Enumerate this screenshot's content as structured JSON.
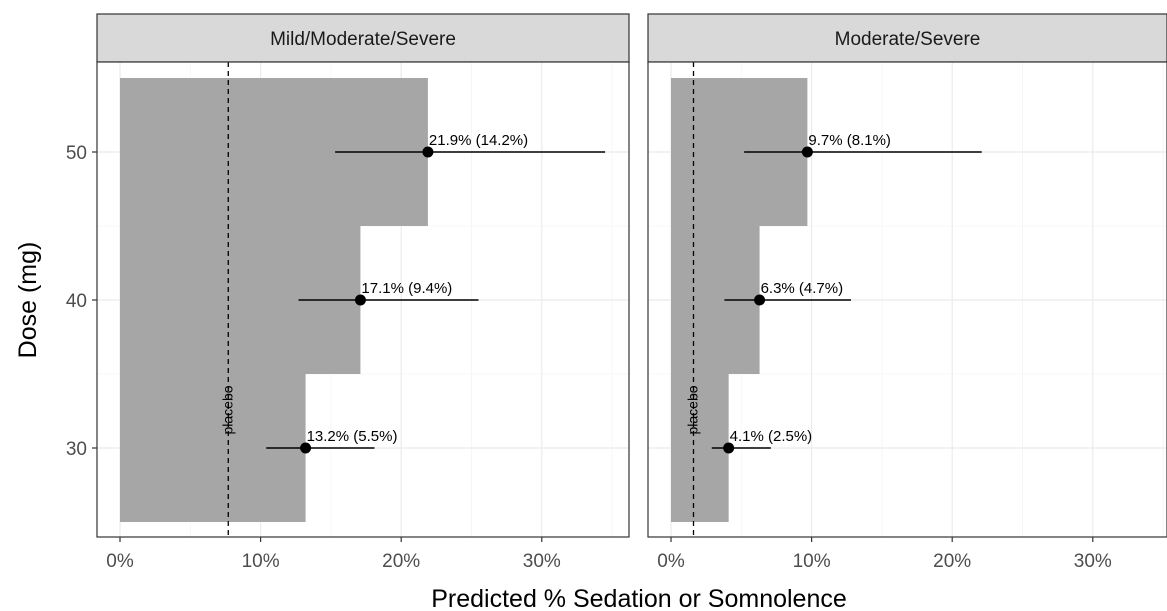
{
  "chart_data": {
    "type": "bar",
    "orientation": "horizontal",
    "xlabel": "Predicted % Sedation or Somnolence",
    "ylabel": "Dose (mg)",
    "xlim": [
      0,
      35
    ],
    "xticks": [
      0,
      10,
      20,
      30
    ],
    "xtick_labels": [
      "0%",
      "10%",
      "20%",
      "30%"
    ],
    "yticks": [
      30,
      40,
      50
    ],
    "ytick_labels": [
      "30",
      "40",
      "50"
    ],
    "grid": true,
    "panels": [
      {
        "title": "Mild/Moderate/Severe",
        "placebo": 7.7,
        "placebo_label": "placebo",
        "bars": [
          {
            "dose": 50,
            "value": 21.9,
            "lower": 15.3,
            "upper": 34.5,
            "label": "21.9% (14.2%)"
          },
          {
            "dose": 40,
            "value": 17.1,
            "lower": 12.7,
            "upper": 25.5,
            "label": "17.1% (9.4%)"
          },
          {
            "dose": 30,
            "value": 13.2,
            "lower": 10.4,
            "upper": 18.1,
            "label": "13.2% (5.5%)"
          }
        ]
      },
      {
        "title": "Moderate/Severe",
        "placebo": 1.6,
        "placebo_label": "placebo",
        "bars": [
          {
            "dose": 50,
            "value": 9.7,
            "lower": 5.2,
            "upper": 22.1,
            "label": "9.7% (8.1%)"
          },
          {
            "dose": 40,
            "value": 6.3,
            "lower": 3.8,
            "upper": 12.8,
            "label": "6.3% (4.7%)"
          },
          {
            "dose": 30,
            "value": 4.1,
            "lower": 2.9,
            "upper": 7.1,
            "label": "4.1% (2.5%)"
          }
        ]
      }
    ]
  }
}
